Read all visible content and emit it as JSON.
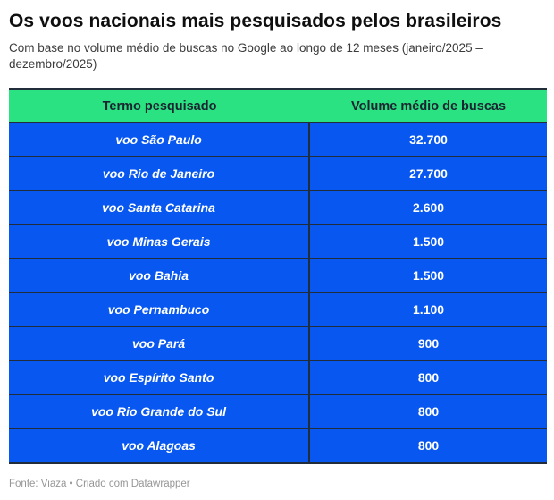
{
  "header": {
    "title": "Os voos nacionais mais pesquisados pelos brasileiros",
    "subtitle": "Com base no volume médio de buscas no Google ao longo de 12 meses (janeiro/2025 – dezembro/2025)"
  },
  "table": {
    "columns": [
      "Termo pesquisado",
      "Volume médio de buscas"
    ],
    "rows": [
      {
        "term": "voo São Paulo",
        "volume": "32.700"
      },
      {
        "term": "voo Rio de Janeiro",
        "volume": "27.700"
      },
      {
        "term": "voo Santa Catarina",
        "volume": "2.600"
      },
      {
        "term": "voo Minas Gerais",
        "volume": "1.500"
      },
      {
        "term": "voo Bahia",
        "volume": "1.500"
      },
      {
        "term": "voo Pernambuco",
        "volume": "1.100"
      },
      {
        "term": "voo Pará",
        "volume": "900"
      },
      {
        "term": "voo Espírito Santo",
        "volume": "800"
      },
      {
        "term": "voo Rio Grande do Sul",
        "volume": "800"
      },
      {
        "term": "voo Alagoas",
        "volume": "800"
      }
    ]
  },
  "footer": {
    "text": "Fonte: Viaza • Criado com Datawrapper"
  },
  "colors": {
    "header_bg": "#2be283",
    "header_text": "#1a2430",
    "row_bg": "#0757f0",
    "row_text": "#ffffff",
    "border": "#212d3a"
  },
  "chart_data": {
    "type": "table",
    "title": "Os voos nacionais mais pesquisados pelos brasileiros",
    "subtitle": "Com base no volume médio de buscas no Google ao longo de 12 meses (janeiro/2025 – dezembro/2025)",
    "columns": [
      "Termo pesquisado",
      "Volume médio de buscas"
    ],
    "categories": [
      "voo São Paulo",
      "voo Rio de Janeiro",
      "voo Santa Catarina",
      "voo Minas Gerais",
      "voo Bahia",
      "voo Pernambuco",
      "voo Pará",
      "voo Espírito Santo",
      "voo Rio Grande do Sul",
      "voo Alagoas"
    ],
    "values": [
      32700,
      27700,
      2600,
      1500,
      1500,
      1100,
      900,
      800,
      800,
      800
    ],
    "value_display": [
      "32.700",
      "27.700",
      "2.600",
      "1.500",
      "1.500",
      "1.100",
      "900",
      "800",
      "800",
      "800"
    ],
    "source": "Fonte: Viaza • Criado com Datawrapper"
  }
}
